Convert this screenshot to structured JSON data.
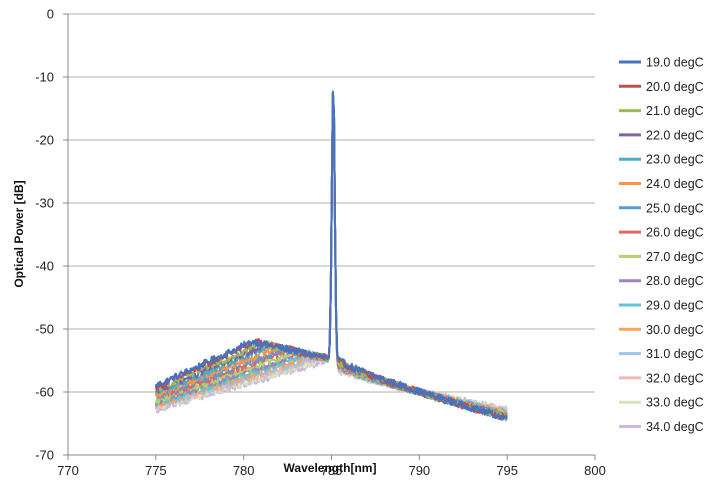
{
  "chart_data": {
    "type": "line",
    "title": "",
    "xlabel": "Wavelength[nm]",
    "ylabel": "Optical Power [dB]",
    "xlim": [
      770,
      800
    ],
    "ylim": [
      -70,
      0
    ],
    "xticks": [
      770,
      775,
      780,
      785,
      790,
      795,
      800
    ],
    "yticks": [
      0,
      -10,
      -20,
      -30,
      -40,
      -50,
      -60,
      -70
    ],
    "grid": "horizontal",
    "legend_position": "right",
    "x_range_of_data": [
      775,
      795
    ],
    "peak_wavelength": 785.1,
    "series": [
      {
        "name": "19.0 degC",
        "color": "#4472c4",
        "left_start": -59.0,
        "left_peak_x": 780.5,
        "left_peak": -52.0,
        "peak": -11.2,
        "right_after": -55.0,
        "right_end": -64.2
      },
      {
        "name": "20.0 degC",
        "color": "#c0504d",
        "left_start": -59.3,
        "left_peak_x": 780.7,
        "left_peak": -52.0,
        "peak": -11.3,
        "right_after": -55.2,
        "right_end": -64.2
      },
      {
        "name": "21.0 degC",
        "color": "#9bbb59",
        "left_start": -59.6,
        "left_peak_x": 781.0,
        "left_peak": -52.3,
        "peak": -11.4,
        "right_after": -55.3,
        "right_end": -64.1
      },
      {
        "name": "22.0 degC",
        "color": "#8064a2",
        "left_start": -59.9,
        "left_peak_x": 781.3,
        "left_peak": -52.5,
        "peak": -11.5,
        "right_after": -55.4,
        "right_end": -64.1
      },
      {
        "name": "23.0 degC",
        "color": "#4bacc6",
        "left_start": -60.2,
        "left_peak_x": 781.6,
        "left_peak": -52.8,
        "peak": -11.6,
        "right_after": -55.5,
        "right_end": -64.0
      },
      {
        "name": "24.0 degC",
        "color": "#f79646",
        "left_start": -60.5,
        "left_peak_x": 781.9,
        "left_peak": -53.0,
        "peak": -11.7,
        "right_after": -55.6,
        "right_end": -63.9
      },
      {
        "name": "25.0 degC",
        "color": "#5b9bd5",
        "left_start": -60.8,
        "left_peak_x": 782.2,
        "left_peak": -53.3,
        "peak": -11.5,
        "right_after": -55.7,
        "right_end": -63.8
      },
      {
        "name": "26.0 degC",
        "color": "#e06666",
        "left_start": -61.0,
        "left_peak_x": 782.5,
        "left_peak": -53.5,
        "peak": -11.4,
        "right_after": -55.8,
        "right_end": -63.7
      },
      {
        "name": "27.0 degC",
        "color": "#b3cf74",
        "left_start": -61.3,
        "left_peak_x": 782.8,
        "left_peak": -53.8,
        "peak": -11.3,
        "right_after": -55.9,
        "right_end": -63.6
      },
      {
        "name": "28.0 degC",
        "color": "#9a85bd",
        "left_start": -61.6,
        "left_peak_x": 783.1,
        "left_peak": -54.0,
        "peak": -11.2,
        "right_after": -56.0,
        "right_end": -63.5
      },
      {
        "name": "29.0 degC",
        "color": "#5fc4d4",
        "left_start": -61.8,
        "left_peak_x": 783.4,
        "left_peak": -54.2,
        "peak": -11.2,
        "right_after": -56.1,
        "right_end": -63.4
      },
      {
        "name": "30.0 degC",
        "color": "#f8a55b",
        "left_start": -62.0,
        "left_peak_x": 783.7,
        "left_peak": -54.4,
        "peak": -11.3,
        "right_after": -56.2,
        "right_end": -63.3
      },
      {
        "name": "31.0 degC",
        "color": "#9dc3e6",
        "left_start": -62.2,
        "left_peak_x": 784.0,
        "left_peak": -54.6,
        "peak": -11.4,
        "right_after": -56.3,
        "right_end": -63.2
      },
      {
        "name": "32.0 degC",
        "color": "#f4b6b6",
        "left_start": -62.4,
        "left_peak_x": 784.2,
        "left_peak": -54.8,
        "peak": -11.3,
        "right_after": -56.4,
        "right_end": -63.1
      },
      {
        "name": "33.0 degC",
        "color": "#d6e4bc",
        "left_start": -62.6,
        "left_peak_x": 784.4,
        "left_peak": -55.0,
        "peak": -11.2,
        "right_after": -56.5,
        "right_end": -63.0
      },
      {
        "name": "34.0 degC",
        "color": "#c9b9e0",
        "left_start": -62.8,
        "left_peak_x": 784.5,
        "left_peak": -55.2,
        "peak": -11.0,
        "right_after": -56.6,
        "right_end": -62.8
      }
    ]
  }
}
